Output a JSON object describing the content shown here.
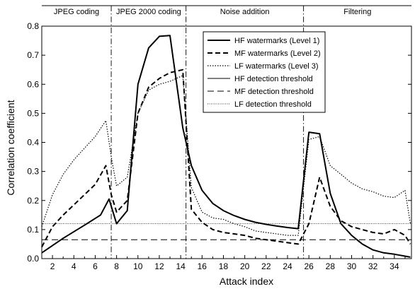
{
  "chart_data": {
    "type": "line",
    "xlabel": "Attack index",
    "ylabel": "Correlation coefficient",
    "x_tick_labels": [
      "2",
      "4",
      "6",
      "8",
      "10",
      "12",
      "14",
      "16",
      "18",
      "20",
      "22",
      "24",
      "26",
      "28",
      "30",
      "32",
      "34"
    ],
    "y_tick_labels": [
      "0.0",
      "0.1",
      "0.2",
      "0.3",
      "0.4",
      "0.5",
      "0.6",
      "0.7",
      "0.8"
    ],
    "xlim": [
      1,
      35.6
    ],
    "ylim": [
      0,
      0.8
    ],
    "grid": false,
    "legend_position": "top-right",
    "section_dividers": [
      7.5,
      14.5,
      25.5
    ],
    "sections": [
      {
        "label": "JPEG coding",
        "start": 1,
        "end": 7.5
      },
      {
        "label": "JPEG 2000 coding",
        "start": 7.5,
        "end": 14.5
      },
      {
        "label": "Noise addition",
        "start": 14.5,
        "end": 25.5
      },
      {
        "label": "Filtering",
        "start": 25.5,
        "end": 35.6
      }
    ],
    "series": [
      {
        "name": "HF watermarks (Level 1)",
        "style": "solid-thick",
        "points": [
          [
            1,
            0.02
          ],
          [
            3,
            0.07
          ],
          [
            5,
            0.115
          ],
          [
            6.5,
            0.15
          ],
          [
            7.3,
            0.205
          ],
          [
            8,
            0.12
          ],
          [
            9,
            0.165
          ],
          [
            10,
            0.6
          ],
          [
            11,
            0.725
          ],
          [
            12,
            0.765
          ],
          [
            13,
            0.768
          ],
          [
            14.2,
            0.45
          ],
          [
            15,
            0.32
          ],
          [
            16,
            0.235
          ],
          [
            17,
            0.19
          ],
          [
            18,
            0.165
          ],
          [
            19,
            0.148
          ],
          [
            20,
            0.135
          ],
          [
            21,
            0.125
          ],
          [
            22,
            0.118
          ],
          [
            23,
            0.112
          ],
          [
            24,
            0.107
          ],
          [
            25,
            0.103
          ],
          [
            26,
            0.435
          ],
          [
            27,
            0.43
          ],
          [
            28,
            0.225
          ],
          [
            29,
            0.12
          ],
          [
            30,
            0.08
          ],
          [
            31,
            0.05
          ],
          [
            32,
            0.03
          ],
          [
            33,
            0.02
          ],
          [
            34,
            0.015
          ],
          [
            35.5,
            0.005
          ]
        ]
      },
      {
        "name": "MF watermarks (Level 2)",
        "style": "dashed",
        "points": [
          [
            1,
            0.04
          ],
          [
            2,
            0.11
          ],
          [
            3,
            0.15
          ],
          [
            4,
            0.185
          ],
          [
            5,
            0.22
          ],
          [
            6,
            0.255
          ],
          [
            7,
            0.32
          ],
          [
            7.5,
            0.22
          ],
          [
            8,
            0.16
          ],
          [
            9,
            0.2
          ],
          [
            10,
            0.5
          ],
          [
            11,
            0.59
          ],
          [
            12,
            0.62
          ],
          [
            13,
            0.64
          ],
          [
            14.2,
            0.65
          ],
          [
            15,
            0.17
          ],
          [
            16,
            0.125
          ],
          [
            17,
            0.1
          ],
          [
            18,
            0.09
          ],
          [
            19,
            0.085
          ],
          [
            20,
            0.08
          ],
          [
            21,
            0.07
          ],
          [
            22,
            0.065
          ],
          [
            23,
            0.06
          ],
          [
            24,
            0.055
          ],
          [
            25,
            0.05
          ],
          [
            26,
            0.12
          ],
          [
            27,
            0.28
          ],
          [
            28,
            0.18
          ],
          [
            29,
            0.13
          ],
          [
            30,
            0.11
          ],
          [
            31,
            0.1
          ],
          [
            32,
            0.09
          ],
          [
            33,
            0.085
          ],
          [
            34,
            0.1
          ],
          [
            35,
            0.08
          ],
          [
            35.5,
            0.05
          ]
        ]
      },
      {
        "name": "LF watermarks (Level 3)",
        "style": "dotted",
        "points": [
          [
            1,
            0.11
          ],
          [
            2,
            0.22
          ],
          [
            3,
            0.29
          ],
          [
            4,
            0.34
          ],
          [
            5,
            0.38
          ],
          [
            6,
            0.42
          ],
          [
            7,
            0.475
          ],
          [
            7.5,
            0.35
          ],
          [
            8,
            0.25
          ],
          [
            9,
            0.28
          ],
          [
            10,
            0.5
          ],
          [
            11,
            0.58
          ],
          [
            12,
            0.6
          ],
          [
            13,
            0.61
          ],
          [
            14.2,
            0.63
          ],
          [
            15,
            0.245
          ],
          [
            16,
            0.16
          ],
          [
            17,
            0.14
          ],
          [
            18,
            0.135
          ],
          [
            19,
            0.12
          ],
          [
            20,
            0.11
          ],
          [
            21,
            0.095
          ],
          [
            22,
            0.09
          ],
          [
            23,
            0.085
          ],
          [
            24,
            0.08
          ],
          [
            25,
            0.08
          ],
          [
            26,
            0.41
          ],
          [
            27,
            0.42
          ],
          [
            28,
            0.32
          ],
          [
            29,
            0.29
          ],
          [
            30,
            0.26
          ],
          [
            31,
            0.24
          ],
          [
            32,
            0.23
          ],
          [
            33,
            0.215
          ],
          [
            34,
            0.21
          ],
          [
            35,
            0.235
          ],
          [
            35.5,
            0.12
          ]
        ]
      },
      {
        "name": "HF detection threshold",
        "style": "solid-thin",
        "constant": 0.0
      },
      {
        "name": "MF detection threshold",
        "style": "long-dash",
        "constant": 0.065
      },
      {
        "name": "LF detection threshold",
        "style": "fine-dotted",
        "constant": 0.12
      }
    ]
  }
}
